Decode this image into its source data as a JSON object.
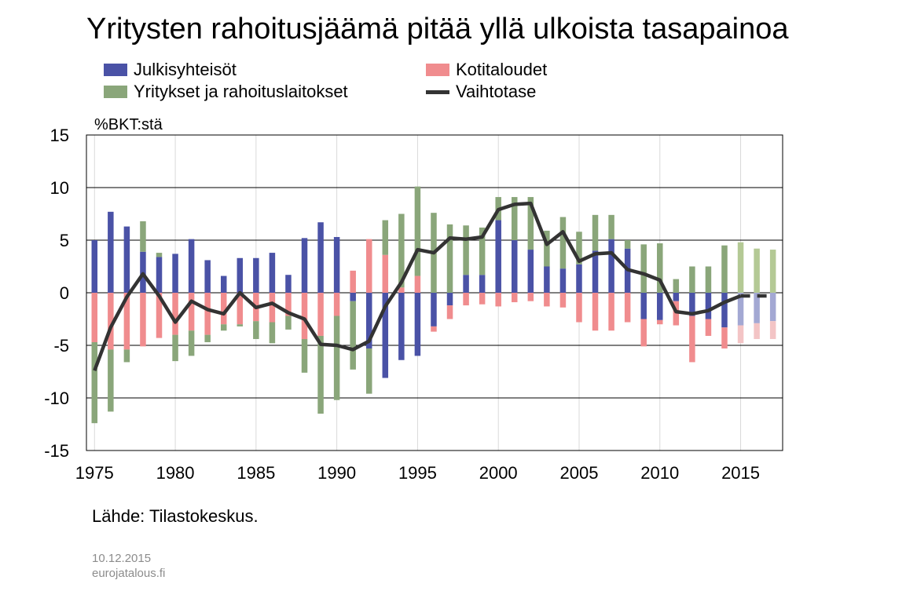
{
  "chart_data": {
    "type": "bar",
    "title": "Yritysten rahoitusjäämä pitää yllä ulkoista tasapainoa",
    "ylabel": "%BKT:stä",
    "xlabel": "",
    "ylim": [
      -15,
      15
    ],
    "yticks": [
      15,
      10,
      5,
      0,
      -5,
      -10,
      -15
    ],
    "xticks": [
      1975,
      1980,
      1985,
      1990,
      1995,
      2000,
      2005,
      2010,
      2015
    ],
    "x_range": [
      1974.5,
      2017.6
    ],
    "grid": "horizontal and vertical",
    "forecast_from": 2015,
    "x": [
      1975,
      1976,
      1977,
      1978,
      1979,
      1980,
      1981,
      1982,
      1983,
      1984,
      1985,
      1986,
      1987,
      1988,
      1989,
      1990,
      1991,
      1992,
      1993,
      1994,
      1995,
      1996,
      1997,
      1998,
      1999,
      2000,
      2001,
      2002,
      2003,
      2004,
      2005,
      2006,
      2007,
      2008,
      2009,
      2010,
      2011,
      2012,
      2013,
      2014,
      2015,
      2016,
      2017
    ],
    "series": [
      {
        "name": "Julkisyhteisöt",
        "type": "bar",
        "color": "#4a52a6",
        "forecast_color": "#a3a8d3",
        "values": [
          5.0,
          7.7,
          6.3,
          3.9,
          3.4,
          3.7,
          5.1,
          3.1,
          1.6,
          3.3,
          3.3,
          3.8,
          1.7,
          5.2,
          6.7,
          5.3,
          -0.8,
          -5.3,
          -8.1,
          -6.4,
          -6.0,
          -3.2,
          -1.2,
          1.7,
          1.7,
          6.9,
          5.0,
          4.1,
          2.5,
          2.3,
          2.7,
          4.0,
          5.1,
          4.2,
          -2.5,
          -2.6,
          -0.8,
          -2.2,
          -2.5,
          -3.3,
          -3.1,
          -2.9,
          -2.7
        ]
      },
      {
        "name": "Kotitaloudet",
        "type": "bar",
        "color": "#f08c8e",
        "forecast_color": "#f3c4c5",
        "values": [
          -4.7,
          -5.4,
          -5.4,
          -5.1,
          -4.3,
          -4.0,
          -3.6,
          -4.0,
          -3.0,
          -3.0,
          -2.7,
          -2.8,
          -2.2,
          -4.4,
          -4.1,
          -2.2,
          2.1,
          5.1,
          3.6,
          0.5,
          1.6,
          -0.5,
          -1.3,
          -1.2,
          -1.1,
          -1.3,
          -0.9,
          -0.8,
          -1.3,
          -1.4,
          -2.8,
          -3.6,
          -3.6,
          -2.8,
          -2.6,
          -0.4,
          -2.3,
          -4.4,
          -1.6,
          -2.0,
          -1.7,
          -1.5,
          -1.7
        ]
      },
      {
        "name": "Yritykset ja rahoituslaitokset",
        "type": "bar",
        "color": "#8aa67a",
        "forecast_color": "#b4c995",
        "values": [
          -7.7,
          -5.9,
          -1.2,
          2.9,
          0.4,
          -2.5,
          -2.4,
          -0.7,
          -0.6,
          -0.2,
          -1.7,
          -2.0,
          -1.3,
          -3.2,
          -7.4,
          -8.0,
          -6.5,
          -4.3,
          3.3,
          7.0,
          8.5,
          7.6,
          6.5,
          4.7,
          4.5,
          2.2,
          4.1,
          5.0,
          3.4,
          4.9,
          3.1,
          3.4,
          2.3,
          0.8,
          4.6,
          4.7,
          1.3,
          2.5,
          2.5,
          4.5,
          4.8,
          4.2,
          4.1
        ]
      },
      {
        "name": "Vaihtotase",
        "type": "line",
        "color": "#333333",
        "values": [
          -7.4,
          -3.3,
          -0.4,
          1.8,
          -0.3,
          -2.8,
          -0.8,
          -1.6,
          -2.0,
          0.0,
          -1.4,
          -1.0,
          -1.9,
          -2.5,
          -4.9,
          -5.0,
          -5.4,
          -4.6,
          -1.3,
          1.0,
          4.1,
          3.8,
          5.2,
          5.1,
          5.3,
          7.9,
          8.4,
          8.5,
          4.6,
          5.8,
          3.0,
          3.7,
          3.8,
          2.2,
          1.8,
          1.2,
          -1.8,
          -2.0,
          -1.7,
          -0.9,
          -0.3,
          -0.3,
          -0.3
        ]
      }
    ]
  },
  "source": "Lähde: Tilastokeskus.",
  "date": "10.12.2015",
  "website": "eurojatalous.fi"
}
